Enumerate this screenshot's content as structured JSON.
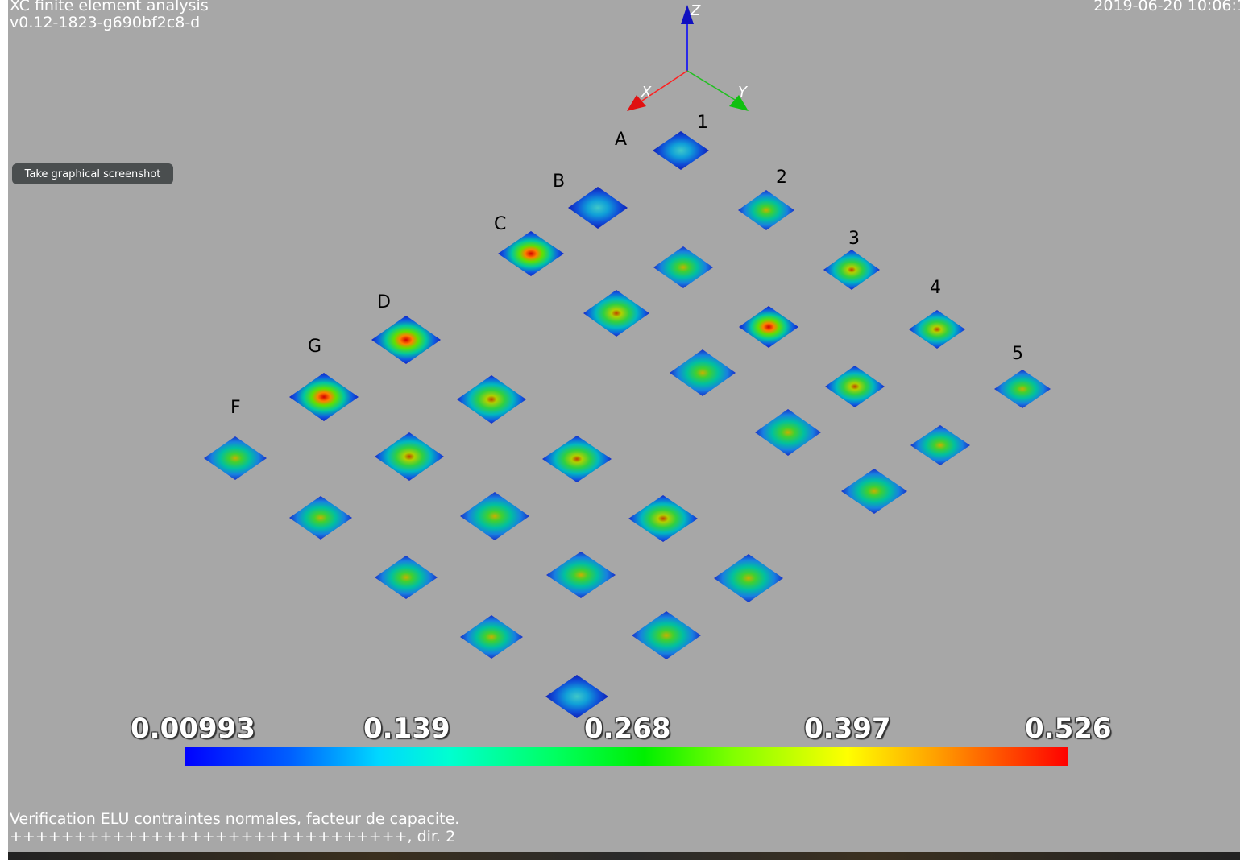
{
  "header": {
    "title": "XC finite element analysis",
    "version": "v0.12-1823-g690bf2c8-d",
    "timestamp": "2019-06-20 10:06:1"
  },
  "toolbar": {
    "screenshot_label": "Take graphical screenshot"
  },
  "axes": {
    "x": "X",
    "y": "Y",
    "z": "Z"
  },
  "grid_labels": [
    "A",
    "B",
    "C",
    "D",
    "G",
    "F",
    "1",
    "2",
    "3",
    "4",
    "5"
  ],
  "colorbar": {
    "labels": [
      "0.00993",
      "0.139",
      "0.268",
      "0.397",
      "0.526"
    ],
    "min": 0.00993,
    "max": 0.526,
    "colormap": "rainbow"
  },
  "caption": {
    "line1": "Verification ELU contraintes normales, facteur de capacite.",
    "line2": "+++++++++++++++++++++++++++++++, dir. 2"
  },
  "colors": {
    "background": "#a7a7a7",
    "x_axis": "#ff0000",
    "y_axis": "#00cc00",
    "z_axis": "#0000ff"
  }
}
